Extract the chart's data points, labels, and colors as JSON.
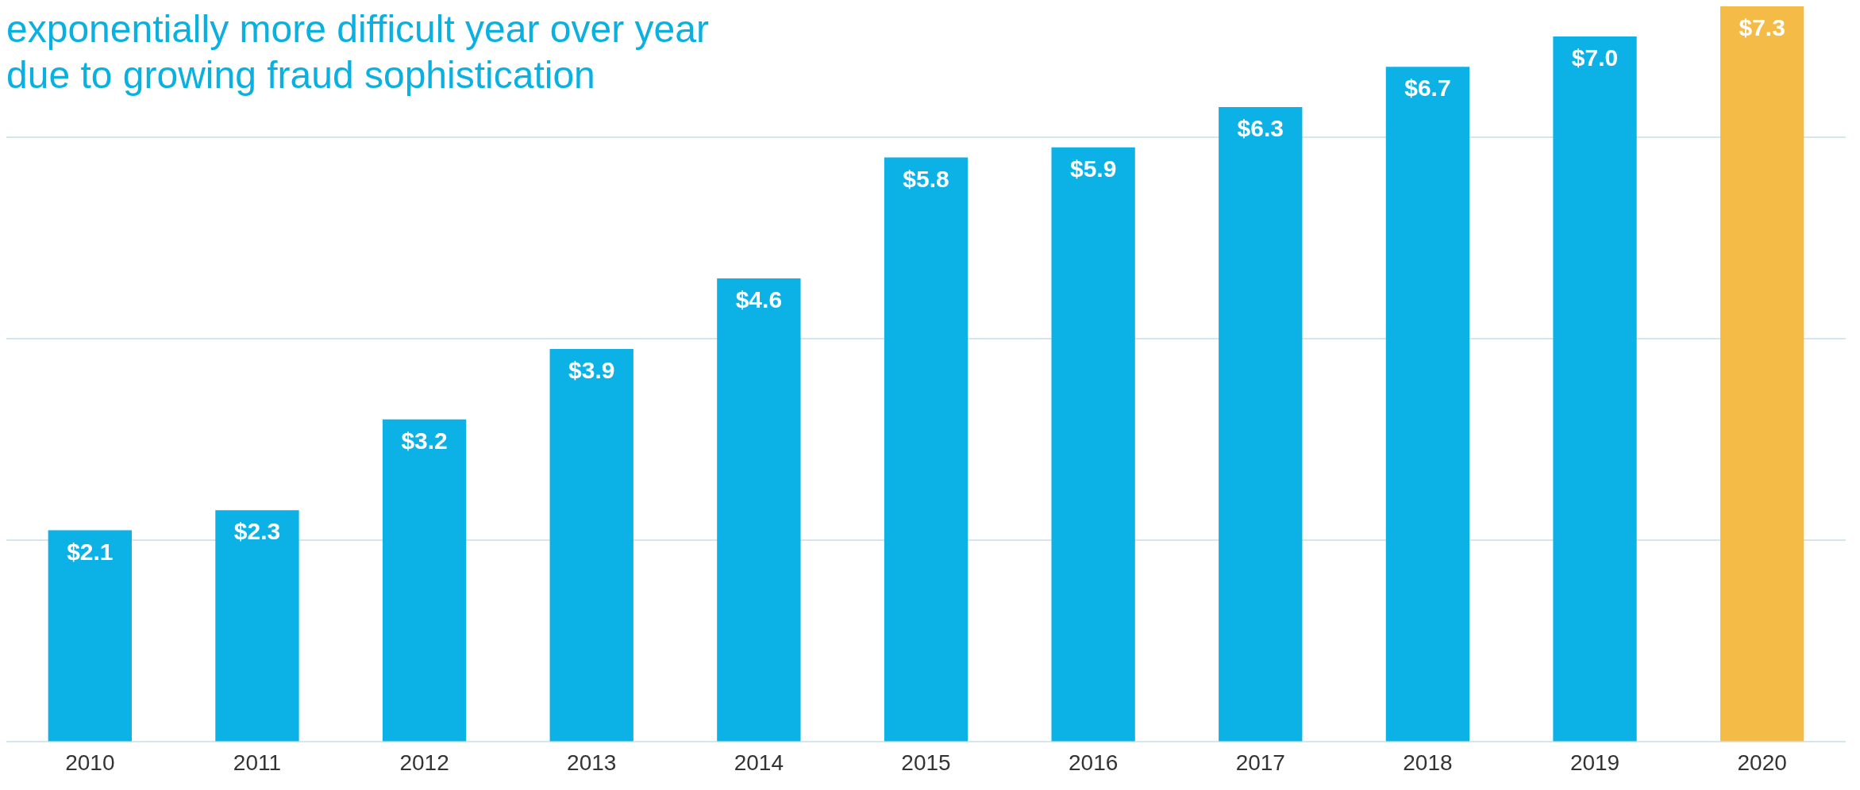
{
  "chart_data": {
    "type": "bar",
    "title": "exponentially more difficult year over year\ndue to growing fraud sophistication",
    "categories": [
      "2010",
      "2011",
      "2012",
      "2013",
      "2014",
      "2015",
      "2016",
      "2017",
      "2018",
      "2019",
      "2020"
    ],
    "values": [
      2.1,
      2.3,
      3.2,
      3.9,
      4.6,
      5.8,
      5.9,
      6.3,
      6.7,
      7.0,
      7.3
    ],
    "value_labels": [
      "$2.1",
      "$2.3",
      "$3.2",
      "$3.9",
      "$4.6",
      "$5.8",
      "$5.9",
      "$6.3",
      "$6.7",
      "$7.0",
      "$7.3"
    ],
    "colors": [
      "#0cb2e6",
      "#0cb2e6",
      "#0cb2e6",
      "#0cb2e6",
      "#0cb2e6",
      "#0cb2e6",
      "#0cb2e6",
      "#0cb2e6",
      "#0cb2e6",
      "#0cb2e6",
      "#f4bb47"
    ],
    "ylim": [
      0,
      7.3
    ],
    "yticks": [
      {
        "value": 0,
        "label": null
      },
      {
        "value": 2,
        "label": null
      },
      {
        "value": 4,
        "label": null
      },
      {
        "value": 6,
        "label": null
      }
    ],
    "grid": "y",
    "tick_labels": "x",
    "legend": false
  }
}
